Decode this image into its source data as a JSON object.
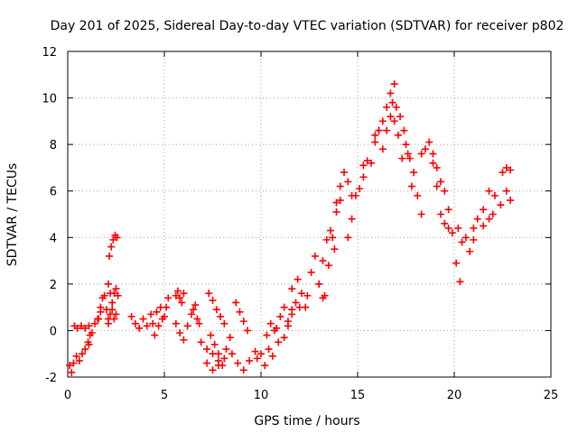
{
  "chart_data": {
    "type": "scatter",
    "title": "Day 201 of 2025, Sidereal Day-to-day VTEC variation (SDTVAR) for receiver p802",
    "xlabel": "GPS time / hours",
    "ylabel": "SDTVAR / TECUs",
    "xlim": [
      0,
      25
    ],
    "ylim": [
      -2,
      12
    ],
    "xticks": [
      "0",
      "5",
      "10",
      "15",
      "20",
      "25"
    ],
    "yticks": [
      "-2",
      "0",
      "2",
      "4",
      "6",
      "8",
      "10",
      "12"
    ],
    "grid": true,
    "marker": "+",
    "series": [
      {
        "name": "SDTVAR",
        "color": "#ff0000",
        "segments": [
          {
            "x": [
              0.1,
              0.2,
              0.3,
              0.45,
              0.6,
              0.75,
              0.9,
              1.05,
              1.15
            ],
            "y": [
              -1.5,
              -1.8,
              -1.4,
              -1.1,
              -1.3,
              -1.0,
              -0.8,
              -0.5,
              -0.2
            ]
          },
          {
            "x": [
              0.35,
              0.5,
              0.7,
              0.9,
              1.1
            ],
            "y": [
              0.2,
              0.1,
              0.2,
              0.1,
              0.2
            ]
          },
          {
            "x": [
              1.1,
              1.25,
              1.4,
              1.55,
              1.7
            ],
            "y": [
              -0.6,
              -0.1,
              0.3,
              0.5,
              0.8
            ]
          },
          {
            "x": [
              1.6,
              1.7,
              1.8,
              1.9,
              2.0,
              2.1
            ],
            "y": [
              0.5,
              1.0,
              1.4,
              1.5,
              0.9,
              0.3
            ]
          },
          {
            "x": [
              2.1,
              2.2,
              2.3,
              2.4,
              2.5
            ],
            "y": [
              0.5,
              0.7,
              0.9,
              0.5,
              0.7
            ]
          },
          {
            "x": [
              2.1,
              2.2,
              2.3,
              2.4,
              2.5,
              2.6
            ],
            "y": [
              2.0,
              1.6,
              1.2,
              1.6,
              1.8,
              1.5
            ]
          },
          {
            "x": [
              2.15,
              2.25,
              2.35,
              2.45,
              2.55
            ],
            "y": [
              3.2,
              3.6,
              3.9,
              4.1,
              4.0
            ]
          },
          {
            "x": [
              3.3,
              3.5,
              3.7,
              3.9,
              4.1,
              4.3
            ],
            "y": [
              0.6,
              0.3,
              0.1,
              0.5,
              0.2,
              0.7
            ]
          },
          {
            "x": [
              4.4,
              4.6,
              4.8,
              5.0,
              5.2
            ],
            "y": [
              0.3,
              0.8,
              1.0,
              0.6,
              1.4
            ]
          },
          {
            "x": [
              4.5,
              4.7,
              4.9,
              5.1
            ],
            "y": [
              -0.2,
              0.2,
              0.5,
              1.0
            ]
          },
          {
            "x": [
              5.6,
              5.7,
              5.8,
              5.9,
              6.0
            ],
            "y": [
              1.5,
              1.7,
              1.4,
              1.2,
              1.6
            ]
          },
          {
            "x": [
              5.6,
              5.8,
              6.0,
              6.2
            ],
            "y": [
              0.3,
              -0.1,
              -0.4,
              0.2
            ]
          },
          {
            "x": [
              6.4,
              6.5,
              6.6,
              6.7,
              6.8
            ],
            "y": [
              0.7,
              0.9,
              1.1,
              0.5,
              0.3
            ]
          },
          {
            "x": [
              6.9,
              7.2,
              7.5,
              7.8
            ],
            "y": [
              -0.5,
              -0.8,
              -1.0,
              -1.3
            ]
          },
          {
            "x": [
              7.3,
              7.5,
              7.7,
              7.9,
              8.1
            ],
            "y": [
              1.6,
              1.3,
              0.9,
              0.6,
              0.3
            ]
          },
          {
            "x": [
              7.4,
              7.6,
              7.8,
              8.0,
              8.2,
              8.4
            ],
            "y": [
              -0.2,
              -0.6,
              -1.0,
              -1.5,
              -0.8,
              -0.3
            ]
          },
          {
            "x": [
              7.2,
              7.5,
              7.8,
              8.1
            ],
            "y": [
              -1.4,
              -1.7,
              -1.5,
              -1.2
            ]
          },
          {
            "x": [
              8.7,
              8.9,
              9.1,
              9.3
            ],
            "y": [
              1.2,
              0.8,
              0.4,
              0.0
            ]
          },
          {
            "x": [
              8.5,
              8.8,
              9.1,
              9.4,
              9.7
            ],
            "y": [
              -1.0,
              -1.4,
              -1.7,
              -1.3,
              -0.9
            ]
          },
          {
            "x": [
              9.8,
              10.0,
              10.2,
              10.4,
              10.6
            ],
            "y": [
              -1.2,
              -1.0,
              -1.5,
              -0.8,
              -1.1
            ]
          },
          {
            "x": [
              10.3,
              10.5,
              10.7,
              10.9
            ],
            "y": [
              -0.2,
              0.3,
              0.0,
              -0.5
            ]
          },
          {
            "x": [
              10.8,
              11.0,
              11.2,
              11.4,
              11.6
            ],
            "y": [
              0.1,
              0.6,
              1.0,
              0.4,
              0.9
            ]
          },
          {
            "x": [
              11.2,
              11.4,
              11.6,
              11.8,
              12.0
            ],
            "y": [
              -0.3,
              0.2,
              0.7,
              1.2,
              1.0
            ]
          },
          {
            "x": [
              11.6,
              11.9,
              12.1,
              12.3
            ],
            "y": [
              1.8,
              2.2,
              1.6,
              1.0
            ]
          },
          {
            "x": [
              12.4,
              12.6,
              12.8,
              13.0,
              13.2
            ],
            "y": [
              1.5,
              2.5,
              3.2,
              2.0,
              1.4
            ]
          },
          {
            "x": [
              13.0,
              13.2,
              13.4,
              13.6,
              13.8
            ],
            "y": [
              2.0,
              3.0,
              3.9,
              4.3,
              3.5
            ]
          },
          {
            "x": [
              13.3,
              13.5,
              13.7,
              13.9,
              14.1
            ],
            "y": [
              1.5,
              2.8,
              4.0,
              5.1,
              5.6
            ]
          },
          {
            "x": [
              13.9,
              14.1,
              14.3,
              14.5,
              14.7
            ],
            "y": [
              5.5,
              6.2,
              6.8,
              6.4,
              5.8
            ]
          },
          {
            "x": [
              14.5,
              14.7,
              14.9,
              15.1,
              15.3
            ],
            "y": [
              4.0,
              4.8,
              5.8,
              6.1,
              6.6
            ]
          },
          {
            "x": [
              15.3,
              15.5,
              15.7,
              15.9,
              16.1
            ],
            "y": [
              7.1,
              7.3,
              7.2,
              8.1,
              8.6
            ]
          },
          {
            "x": [
              15.9,
              16.1,
              16.3,
              16.5,
              16.7,
              16.9
            ],
            "y": [
              8.4,
              8.6,
              9.0,
              9.6,
              10.2,
              10.6
            ]
          },
          {
            "x": [
              16.3,
              16.5,
              16.7,
              16.9,
              17.1,
              17.3
            ],
            "y": [
              7.8,
              8.6,
              9.2,
              9.0,
              8.4,
              7.4
            ]
          },
          {
            "x": [
              16.8,
              17.0,
              17.2,
              17.4,
              17.6,
              17.8
            ],
            "y": [
              9.8,
              9.6,
              9.2,
              8.6,
              7.6,
              6.2
            ]
          },
          {
            "x": [
              17.5,
              17.7,
              17.9,
              18.1,
              18.3
            ],
            "y": [
              8.0,
              7.4,
              6.8,
              5.8,
              5.0
            ]
          },
          {
            "x": [
              18.3,
              18.5,
              18.7,
              18.9,
              19.1,
              19.3
            ],
            "y": [
              7.6,
              7.8,
              8.1,
              7.6,
              7.0,
              6.4
            ]
          },
          {
            "x": [
              18.9,
              19.1,
              19.3,
              19.5,
              19.7
            ],
            "y": [
              7.2,
              6.2,
              5.0,
              4.6,
              4.4
            ]
          },
          {
            "x": [
              19.5,
              19.7,
              19.9,
              20.1,
              20.3
            ],
            "y": [
              6.0,
              5.2,
              4.2,
              2.9,
              2.1
            ]
          },
          {
            "x": [
              20.2,
              20.4,
              20.6,
              20.8,
              21.0
            ],
            "y": [
              4.4,
              3.8,
              4.0,
              3.4,
              3.9
            ]
          },
          {
            "x": [
              21.0,
              21.2,
              21.5,
              21.8,
              22.0
            ],
            "y": [
              4.4,
              4.8,
              4.5,
              4.8,
              5.0
            ]
          },
          {
            "x": [
              21.5,
              21.8,
              22.1,
              22.4,
              22.7,
              22.9
            ],
            "y": [
              5.2,
              6.0,
              5.8,
              5.4,
              6.0,
              5.6
            ]
          },
          {
            "x": [
              22.5,
              22.7,
              22.9
            ],
            "y": [
              6.8,
              7.0,
              6.9
            ]
          }
        ]
      }
    ]
  }
}
